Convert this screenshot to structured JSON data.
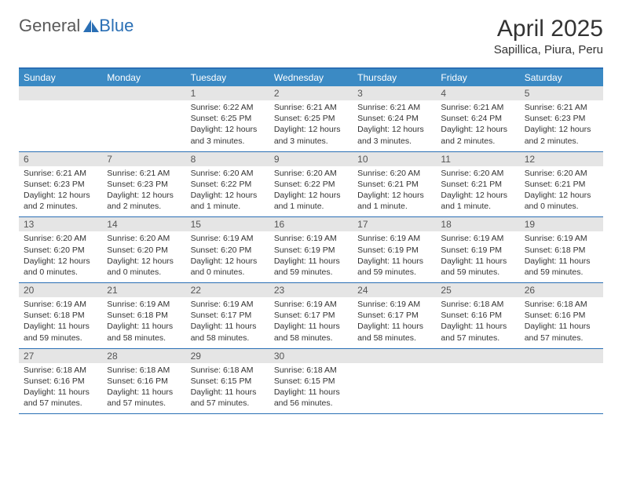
{
  "logo": {
    "general": "General",
    "blue": "Blue"
  },
  "title": "April 2025",
  "subtitle": "Sapillica, Piura, Peru",
  "colors": {
    "header_bg": "#3b8ac4",
    "rule": "#2a6fb5",
    "daynum_bg": "#e5e5e5",
    "text": "#333333",
    "daynum_text": "#555555",
    "weekday_text": "#ffffff",
    "logo_general": "#5a5a5a",
    "logo_blue": "#2a6fb5",
    "background": "#ffffff"
  },
  "fonts": {
    "title_size": 30,
    "subtitle_size": 15,
    "weekday_size": 12,
    "daynum_size": 12,
    "cell_size": 10.5
  },
  "weekdays": [
    "Sunday",
    "Monday",
    "Tuesday",
    "Wednesday",
    "Thursday",
    "Friday",
    "Saturday"
  ],
  "weeks": [
    {
      "nums": [
        "",
        "",
        "1",
        "2",
        "3",
        "4",
        "5"
      ],
      "cells": [
        {
          "sunrise": "",
          "sunset": "",
          "daylight": ""
        },
        {
          "sunrise": "",
          "sunset": "",
          "daylight": ""
        },
        {
          "sunrise": "Sunrise: 6:22 AM",
          "sunset": "Sunset: 6:25 PM",
          "daylight": "Daylight: 12 hours and 3 minutes."
        },
        {
          "sunrise": "Sunrise: 6:21 AM",
          "sunset": "Sunset: 6:25 PM",
          "daylight": "Daylight: 12 hours and 3 minutes."
        },
        {
          "sunrise": "Sunrise: 6:21 AM",
          "sunset": "Sunset: 6:24 PM",
          "daylight": "Daylight: 12 hours and 3 minutes."
        },
        {
          "sunrise": "Sunrise: 6:21 AM",
          "sunset": "Sunset: 6:24 PM",
          "daylight": "Daylight: 12 hours and 2 minutes."
        },
        {
          "sunrise": "Sunrise: 6:21 AM",
          "sunset": "Sunset: 6:23 PM",
          "daylight": "Daylight: 12 hours and 2 minutes."
        }
      ]
    },
    {
      "nums": [
        "6",
        "7",
        "8",
        "9",
        "10",
        "11",
        "12"
      ],
      "cells": [
        {
          "sunrise": "Sunrise: 6:21 AM",
          "sunset": "Sunset: 6:23 PM",
          "daylight": "Daylight: 12 hours and 2 minutes."
        },
        {
          "sunrise": "Sunrise: 6:21 AM",
          "sunset": "Sunset: 6:23 PM",
          "daylight": "Daylight: 12 hours and 2 minutes."
        },
        {
          "sunrise": "Sunrise: 6:20 AM",
          "sunset": "Sunset: 6:22 PM",
          "daylight": "Daylight: 12 hours and 1 minute."
        },
        {
          "sunrise": "Sunrise: 6:20 AM",
          "sunset": "Sunset: 6:22 PM",
          "daylight": "Daylight: 12 hours and 1 minute."
        },
        {
          "sunrise": "Sunrise: 6:20 AM",
          "sunset": "Sunset: 6:21 PM",
          "daylight": "Daylight: 12 hours and 1 minute."
        },
        {
          "sunrise": "Sunrise: 6:20 AM",
          "sunset": "Sunset: 6:21 PM",
          "daylight": "Daylight: 12 hours and 1 minute."
        },
        {
          "sunrise": "Sunrise: 6:20 AM",
          "sunset": "Sunset: 6:21 PM",
          "daylight": "Daylight: 12 hours and 0 minutes."
        }
      ]
    },
    {
      "nums": [
        "13",
        "14",
        "15",
        "16",
        "17",
        "18",
        "19"
      ],
      "cells": [
        {
          "sunrise": "Sunrise: 6:20 AM",
          "sunset": "Sunset: 6:20 PM",
          "daylight": "Daylight: 12 hours and 0 minutes."
        },
        {
          "sunrise": "Sunrise: 6:20 AM",
          "sunset": "Sunset: 6:20 PM",
          "daylight": "Daylight: 12 hours and 0 minutes."
        },
        {
          "sunrise": "Sunrise: 6:19 AM",
          "sunset": "Sunset: 6:20 PM",
          "daylight": "Daylight: 12 hours and 0 minutes."
        },
        {
          "sunrise": "Sunrise: 6:19 AM",
          "sunset": "Sunset: 6:19 PM",
          "daylight": "Daylight: 11 hours and 59 minutes."
        },
        {
          "sunrise": "Sunrise: 6:19 AM",
          "sunset": "Sunset: 6:19 PM",
          "daylight": "Daylight: 11 hours and 59 minutes."
        },
        {
          "sunrise": "Sunrise: 6:19 AM",
          "sunset": "Sunset: 6:19 PM",
          "daylight": "Daylight: 11 hours and 59 minutes."
        },
        {
          "sunrise": "Sunrise: 6:19 AM",
          "sunset": "Sunset: 6:18 PM",
          "daylight": "Daylight: 11 hours and 59 minutes."
        }
      ]
    },
    {
      "nums": [
        "20",
        "21",
        "22",
        "23",
        "24",
        "25",
        "26"
      ],
      "cells": [
        {
          "sunrise": "Sunrise: 6:19 AM",
          "sunset": "Sunset: 6:18 PM",
          "daylight": "Daylight: 11 hours and 59 minutes."
        },
        {
          "sunrise": "Sunrise: 6:19 AM",
          "sunset": "Sunset: 6:18 PM",
          "daylight": "Daylight: 11 hours and 58 minutes."
        },
        {
          "sunrise": "Sunrise: 6:19 AM",
          "sunset": "Sunset: 6:17 PM",
          "daylight": "Daylight: 11 hours and 58 minutes."
        },
        {
          "sunrise": "Sunrise: 6:19 AM",
          "sunset": "Sunset: 6:17 PM",
          "daylight": "Daylight: 11 hours and 58 minutes."
        },
        {
          "sunrise": "Sunrise: 6:19 AM",
          "sunset": "Sunset: 6:17 PM",
          "daylight": "Daylight: 11 hours and 58 minutes."
        },
        {
          "sunrise": "Sunrise: 6:18 AM",
          "sunset": "Sunset: 6:16 PM",
          "daylight": "Daylight: 11 hours and 57 minutes."
        },
        {
          "sunrise": "Sunrise: 6:18 AM",
          "sunset": "Sunset: 6:16 PM",
          "daylight": "Daylight: 11 hours and 57 minutes."
        }
      ]
    },
    {
      "nums": [
        "27",
        "28",
        "29",
        "30",
        "",
        "",
        ""
      ],
      "cells": [
        {
          "sunrise": "Sunrise: 6:18 AM",
          "sunset": "Sunset: 6:16 PM",
          "daylight": "Daylight: 11 hours and 57 minutes."
        },
        {
          "sunrise": "Sunrise: 6:18 AM",
          "sunset": "Sunset: 6:16 PM",
          "daylight": "Daylight: 11 hours and 57 minutes."
        },
        {
          "sunrise": "Sunrise: 6:18 AM",
          "sunset": "Sunset: 6:15 PM",
          "daylight": "Daylight: 11 hours and 57 minutes."
        },
        {
          "sunrise": "Sunrise: 6:18 AM",
          "sunset": "Sunset: 6:15 PM",
          "daylight": "Daylight: 11 hours and 56 minutes."
        },
        {
          "sunrise": "",
          "sunset": "",
          "daylight": ""
        },
        {
          "sunrise": "",
          "sunset": "",
          "daylight": ""
        },
        {
          "sunrise": "",
          "sunset": "",
          "daylight": ""
        }
      ]
    }
  ]
}
